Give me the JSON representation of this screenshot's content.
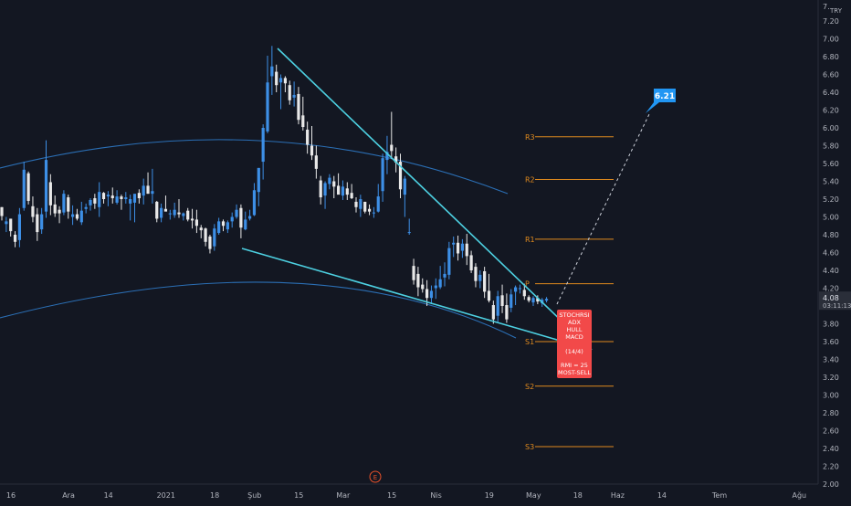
{
  "chart_data": {
    "type": "candlestick",
    "currency": "TRY",
    "y_axis": {
      "min": 2.0,
      "max": 7.4,
      "ticks": [
        "7.20",
        "7.00",
        "6.80",
        "6.60",
        "6.40",
        "6.20",
        "6.00",
        "5.80",
        "5.60",
        "5.40",
        "5.20",
        "5.00",
        "4.80",
        "4.60",
        "4.40",
        "4.20",
        "4.00",
        "3.80",
        "3.60",
        "3.40",
        "3.20",
        "3.00",
        "2.80",
        "2.60",
        "2.40",
        "2.20",
        "2.00"
      ],
      "top_tick_partial": "7."
    },
    "x_axis": {
      "ticks": [
        "16",
        "Ara",
        "14",
        "2021",
        "18",
        "Şub",
        "15",
        "Mar",
        "15",
        "Nis",
        "19",
        "May",
        "18",
        "Haz",
        "14",
        "Tem",
        "Ağu"
      ],
      "tick_index": [
        0,
        13,
        22,
        35,
        46,
        55,
        65,
        75,
        86,
        96,
        108,
        118,
        128,
        137,
        147,
        160,
        178
      ]
    },
    "last_price": {
      "value": "4.08",
      "countdown": "03:11:13"
    },
    "pivot_levels": [
      {
        "label": "R3",
        "value": 5.9
      },
      {
        "label": "R2",
        "value": 5.42
      },
      {
        "label": "R1",
        "value": 4.75
      },
      {
        "label": "P",
        "value": 4.25
      },
      {
        "label": "S1",
        "value": 3.6
      },
      {
        "label": "S2",
        "value": 3.1
      },
      {
        "label": "S3",
        "value": 2.42
      }
    ],
    "target": {
      "label": "6.21",
      "value": 6.21
    },
    "signal_box": [
      "STOCHRSI",
      "ADX",
      "HULL",
      "MACD",
      "",
      "(14/4)",
      "",
      "RMI = 25",
      "MOST-SELL"
    ],
    "events": [
      "E"
    ],
    "candles": [
      [
        5.11,
        5.11,
        4.96,
        5.01
      ],
      [
        4.92,
        5.0,
        4.83,
        4.95
      ],
      [
        4.98,
        4.98,
        4.78,
        4.84
      ],
      [
        4.8,
        4.84,
        4.66,
        4.72
      ],
      [
        4.74,
        5.1,
        4.66,
        5.03
      ],
      [
        5.1,
        5.62,
        5.07,
        5.53
      ],
      [
        5.49,
        5.51,
        5.14,
        5.18
      ],
      [
        5.12,
        5.23,
        4.94,
        5.0
      ],
      [
        5.03,
        5.1,
        4.73,
        4.83
      ],
      [
        4.86,
        5.1,
        4.81,
        5.03
      ],
      [
        5.06,
        5.86,
        4.99,
        5.64
      ],
      [
        5.39,
        5.48,
        5.02,
        5.13
      ],
      [
        5.14,
        5.24,
        5.0,
        5.04
      ],
      [
        5.08,
        5.12,
        4.93,
        5.04
      ],
      [
        5.05,
        5.3,
        5.02,
        5.26
      ],
      [
        5.22,
        5.25,
        4.98,
        5.06
      ],
      [
        5.0,
        5.13,
        4.91,
        5.03
      ],
      [
        5.03,
        5.09,
        4.96,
        4.98
      ],
      [
        4.94,
        5.17,
        4.91,
        5.07
      ],
      [
        5.09,
        5.15,
        5.04,
        5.11
      ],
      [
        5.13,
        5.21,
        5.07,
        5.19
      ],
      [
        5.21,
        5.26,
        5.09,
        5.15
      ],
      [
        5.11,
        5.39,
        5.0,
        5.28
      ],
      [
        5.27,
        5.28,
        5.15,
        5.2
      ],
      [
        5.23,
        5.29,
        5.12,
        5.25
      ],
      [
        5.24,
        5.33,
        5.15,
        5.21
      ],
      [
        5.16,
        5.3,
        5.14,
        5.23
      ],
      [
        5.23,
        5.25,
        5.08,
        5.2
      ],
      [
        5.2,
        5.28,
        5.15,
        5.22
      ],
      [
        5.15,
        5.25,
        4.96,
        5.2
      ],
      [
        5.16,
        5.24,
        4.94,
        5.26
      ],
      [
        5.27,
        5.31,
        5.15,
        5.21
      ],
      [
        5.24,
        5.43,
        5.14,
        5.35
      ],
      [
        5.35,
        5.5,
        5.26,
        5.26
      ],
      [
        5.26,
        5.54,
        5.15,
        5.29
      ],
      [
        5.17,
        5.18,
        4.94,
        4.98
      ],
      [
        4.99,
        5.15,
        4.94,
        5.1
      ],
      [
        5.09,
        5.24,
        5.09,
        5.06
      ],
      [
        5.04,
        5.08,
        4.97,
        5.04
      ],
      [
        5.02,
        5.16,
        4.99,
        5.08
      ],
      [
        5.05,
        5.2,
        4.99,
        5.03
      ],
      [
        5.01,
        5.05,
        4.96,
        5.04
      ],
      [
        5.07,
        5.1,
        4.95,
        4.97
      ],
      [
        4.98,
        5.09,
        4.87,
        4.96
      ],
      [
        4.97,
        5.08,
        4.82,
        4.9
      ],
      [
        4.88,
        4.91,
        4.76,
        4.85
      ],
      [
        4.87,
        4.88,
        4.67,
        4.72
      ],
      [
        4.78,
        4.8,
        4.59,
        4.64
      ],
      [
        4.67,
        4.92,
        4.62,
        4.87
      ],
      [
        4.82,
        4.99,
        4.8,
        4.95
      ],
      [
        4.95,
        4.97,
        4.84,
        4.9
      ],
      [
        4.86,
        4.96,
        4.82,
        4.94
      ],
      [
        4.95,
        5.05,
        4.88,
        5.0
      ],
      [
        5.0,
        5.14,
        4.98,
        5.08
      ],
      [
        5.1,
        5.14,
        4.76,
        4.88
      ],
      [
        4.86,
        5.06,
        4.85,
        4.97
      ],
      [
        4.98,
        5.08,
        4.96,
        5.01
      ],
      [
        5.02,
        5.38,
        5.01,
        5.3
      ],
      [
        5.28,
        5.55,
        5.12,
        5.55
      ],
      [
        5.62,
        6.04,
        5.42,
        6.0
      ],
      [
        5.96,
        6.81,
        5.94,
        6.51
      ],
      [
        6.58,
        6.92,
        6.37,
        6.69
      ],
      [
        6.63,
        6.71,
        6.4,
        6.48
      ],
      [
        6.51,
        6.6,
        6.21,
        6.56
      ],
      [
        6.56,
        6.58,
        6.4,
        6.5
      ],
      [
        6.48,
        6.53,
        6.26,
        6.31
      ],
      [
        6.34,
        6.52,
        6.24,
        6.37
      ],
      [
        6.38,
        6.46,
        6.04,
        6.09
      ],
      [
        6.14,
        6.35,
        5.97,
        6.01
      ],
      [
        5.98,
        6.07,
        5.71,
        5.81
      ],
      [
        5.8,
        6.02,
        5.64,
        5.69
      ],
      [
        5.69,
        5.8,
        5.43,
        5.54
      ],
      [
        5.41,
        5.46,
        5.14,
        5.22
      ],
      [
        5.24,
        5.4,
        5.09,
        5.38
      ],
      [
        5.37,
        5.48,
        5.31,
        5.44
      ],
      [
        5.4,
        5.46,
        5.21,
        5.34
      ],
      [
        5.35,
        5.49,
        5.28,
        5.25
      ],
      [
        5.24,
        5.41,
        5.19,
        5.34
      ],
      [
        5.32,
        5.39,
        5.19,
        5.25
      ],
      [
        5.27,
        5.37,
        5.2,
        5.21
      ],
      [
        5.17,
        5.22,
        5.05,
        5.11
      ],
      [
        5.09,
        5.25,
        5.0,
        5.2
      ],
      [
        5.17,
        5.17,
        5.04,
        5.06
      ],
      [
        5.09,
        5.14,
        5.02,
        5.06
      ],
      [
        5.05,
        5.11,
        4.99,
        5.05
      ],
      [
        5.06,
        5.37,
        5.05,
        5.23
      ],
      [
        5.29,
        5.71,
        5.17,
        5.66
      ],
      [
        5.64,
        5.91,
        5.48,
        5.73
      ],
      [
        5.81,
        6.18,
        5.65,
        5.74
      ],
      [
        5.68,
        5.78,
        5.5,
        5.61
      ],
      [
        5.62,
        5.71,
        5.21,
        5.31
      ],
      [
        5.25,
        5.46,
        5.0,
        5.43
      ],
      [
        4.82,
        4.98,
        4.8,
        4.83
      ],
      [
        4.45,
        4.53,
        4.24,
        4.29
      ],
      [
        4.36,
        4.44,
        4.11,
        4.21
      ],
      [
        4.24,
        4.31,
        4.15,
        4.19
      ],
      [
        4.19,
        4.29,
        4.0,
        4.09
      ],
      [
        4.09,
        4.23,
        4.02,
        4.17
      ],
      [
        4.2,
        4.31,
        4.08,
        4.23
      ],
      [
        4.21,
        4.45,
        4.19,
        4.3
      ],
      [
        4.32,
        4.49,
        4.22,
        4.36
      ],
      [
        4.35,
        4.72,
        4.3,
        4.65
      ],
      [
        4.69,
        4.78,
        4.55,
        4.71
      ],
      [
        4.71,
        4.79,
        4.51,
        4.59
      ],
      [
        4.62,
        4.75,
        4.54,
        4.7
      ],
      [
        4.7,
        4.81,
        4.46,
        4.56
      ],
      [
        4.57,
        4.62,
        4.37,
        4.4
      ],
      [
        4.44,
        4.48,
        4.21,
        4.28
      ],
      [
        4.28,
        4.4,
        4.2,
        4.35
      ],
      [
        4.39,
        4.44,
        4.09,
        4.16
      ],
      [
        4.17,
        4.36,
        4.04,
        4.06
      ],
      [
        4.01,
        4.06,
        3.8,
        3.85
      ],
      [
        3.89,
        4.17,
        3.82,
        4.11
      ],
      [
        4.12,
        4.24,
        3.92,
        4.0
      ],
      [
        4.01,
        4.14,
        3.81,
        3.85
      ],
      [
        3.98,
        4.19,
        3.93,
        4.13
      ],
      [
        4.16,
        4.23,
        4.01,
        4.21
      ],
      [
        4.19,
        4.24,
        4.14,
        4.2
      ],
      [
        4.18,
        4.25,
        4.07,
        4.11
      ],
      [
        4.1,
        4.12,
        4.04,
        4.06
      ],
      [
        4.04,
        4.11,
        4.0,
        4.09
      ],
      [
        4.09,
        4.12,
        4.02,
        4.05
      ],
      [
        4.03,
        4.09,
        3.99,
        4.07
      ],
      [
        4.06,
        4.1,
        4.04,
        4.08
      ]
    ]
  }
}
